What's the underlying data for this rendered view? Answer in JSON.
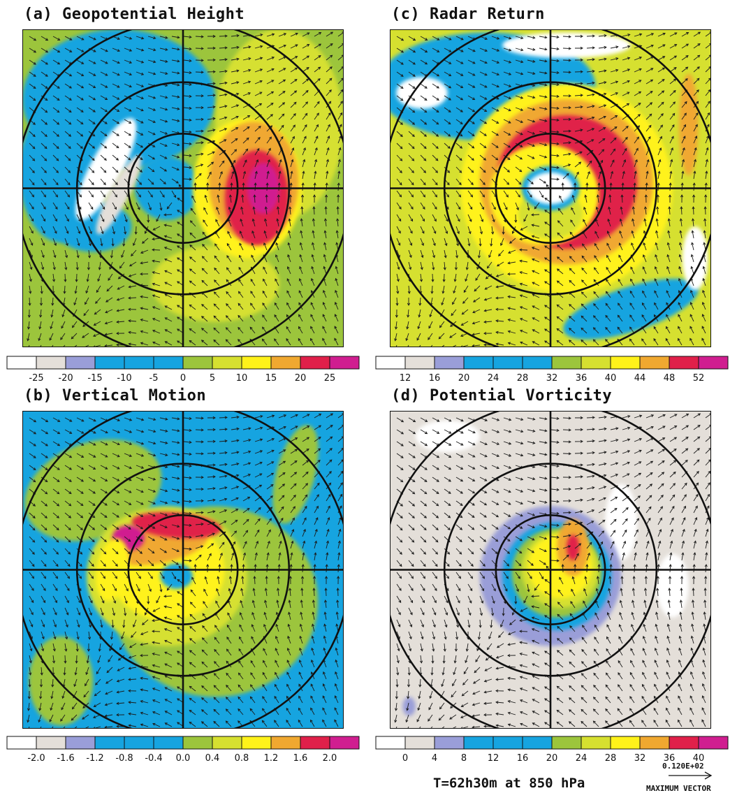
{
  "chart_data": [
    {
      "type": "heatmap",
      "id": "a",
      "title": "(a) Geopotential Height",
      "colorbar": {
        "colors": [
          "#ffffff",
          "#e4dfd9",
          "#9a9ed8",
          "#16a4e0",
          "#16a4e0",
          "#16a4e0",
          "#9cc53c",
          "#d6e030",
          "#fff21a",
          "#f0a830",
          "#e0204a",
          "#d01e90"
        ],
        "labels": [
          "-25",
          "-20",
          "-15",
          "-10",
          "-5",
          "0",
          "5",
          "10",
          "15",
          "20",
          "25"
        ]
      },
      "field": {
        "background": "#9cc53c",
        "blobs": [
          {
            "color": "#16a4e0",
            "cx": 0.3,
            "cy": 0.22,
            "rx": 0.3,
            "ry": 0.22,
            "rot": 0
          },
          {
            "color": "#16a4e0",
            "cx": 0.12,
            "cy": 0.45,
            "rx": 0.13,
            "ry": 0.22,
            "rot": 0
          },
          {
            "color": "#16a4e0",
            "cx": 0.45,
            "cy": 0.5,
            "rx": 0.1,
            "ry": 0.1,
            "rot": 0
          },
          {
            "color": "#16a4e0",
            "cx": 0.22,
            "cy": 0.62,
            "rx": 0.12,
            "ry": 0.08,
            "rot": 0
          },
          {
            "color": "#d6e030",
            "cx": 0.8,
            "cy": 0.3,
            "rx": 0.2,
            "ry": 0.3,
            "rot": 0
          },
          {
            "color": "#d6e030",
            "cx": 0.6,
            "cy": 0.8,
            "rx": 0.2,
            "ry": 0.12,
            "rot": 0
          },
          {
            "color": "#fff21a",
            "cx": 0.7,
            "cy": 0.5,
            "rx": 0.17,
            "ry": 0.22,
            "rot": 0
          },
          {
            "color": "#f0a830",
            "cx": 0.72,
            "cy": 0.48,
            "rx": 0.14,
            "ry": 0.19,
            "rot": 0
          },
          {
            "color": "#e0204a",
            "cx": 0.73,
            "cy": 0.53,
            "rx": 0.1,
            "ry": 0.15,
            "rot": 0
          },
          {
            "color": "#d01e90",
            "cx": 0.75,
            "cy": 0.5,
            "rx": 0.05,
            "ry": 0.08,
            "rot": 0
          },
          {
            "color": "#ffffff",
            "cx": 0.26,
            "cy": 0.44,
            "rx": 0.05,
            "ry": 0.18,
            "rot": 28
          },
          {
            "color": "#e4dfd9",
            "cx": 0.3,
            "cy": 0.52,
            "rx": 0.03,
            "ry": 0.14,
            "rot": 28
          }
        ]
      }
    },
    {
      "type": "heatmap",
      "id": "c",
      "title": "(c) Radar Return",
      "colorbar": {
        "colors": [
          "#ffffff",
          "#e4dfd9",
          "#9a9ed8",
          "#16a4e0",
          "#16a4e0",
          "#16a4e0",
          "#9cc53c",
          "#d6e030",
          "#fff21a",
          "#f0a830",
          "#e0204a",
          "#d01e90"
        ],
        "labels": [
          "12",
          "16",
          "20",
          "24",
          "28",
          "32",
          "36",
          "40",
          "44",
          "48",
          "52"
        ]
      },
      "field": {
        "background": "#d6e030",
        "blobs": [
          {
            "color": "#16a4e0",
            "cx": 0.3,
            "cy": 0.18,
            "rx": 0.34,
            "ry": 0.17,
            "rot": 0
          },
          {
            "color": "#16a4e0",
            "cx": 0.75,
            "cy": 0.88,
            "rx": 0.22,
            "ry": 0.07,
            "rot": -18
          },
          {
            "color": "#ffffff",
            "cx": 0.1,
            "cy": 0.2,
            "rx": 0.08,
            "ry": 0.05,
            "rot": 0
          },
          {
            "color": "#ffffff",
            "cx": 0.55,
            "cy": 0.05,
            "rx": 0.2,
            "ry": 0.04,
            "rot": 0
          },
          {
            "color": "#ffffff",
            "cx": 0.95,
            "cy": 0.72,
            "rx": 0.04,
            "ry": 0.1,
            "rot": 0
          },
          {
            "color": "#fff21a",
            "cx": 0.55,
            "cy": 0.5,
            "rx": 0.33,
            "ry": 0.33,
            "rot": 0
          },
          {
            "color": "#f0a830",
            "cx": 0.55,
            "cy": 0.48,
            "rx": 0.27,
            "ry": 0.26,
            "rot": 0
          },
          {
            "color": "#e0204a",
            "cx": 0.55,
            "cy": 0.48,
            "rx": 0.22,
            "ry": 0.21,
            "rot": 0
          },
          {
            "color": "#fff21a",
            "cx": 0.48,
            "cy": 0.52,
            "rx": 0.17,
            "ry": 0.16,
            "rot": 0
          },
          {
            "color": "#d6e030",
            "cx": 0.5,
            "cy": 0.58,
            "rx": 0.1,
            "ry": 0.08,
            "rot": 0
          },
          {
            "color": "#16a4e0",
            "cx": 0.5,
            "cy": 0.5,
            "rx": 0.09,
            "ry": 0.07,
            "rot": 0
          },
          {
            "color": "#ffffff",
            "cx": 0.5,
            "cy": 0.5,
            "rx": 0.07,
            "ry": 0.05,
            "rot": 0
          },
          {
            "color": "#f0a830",
            "cx": 0.93,
            "cy": 0.3,
            "rx": 0.03,
            "ry": 0.16,
            "rot": 0
          }
        ]
      }
    },
    {
      "type": "heatmap",
      "id": "b",
      "title": "(b) Vertical Motion",
      "colorbar": {
        "colors": [
          "#ffffff",
          "#e4dfd9",
          "#9a9ed8",
          "#16a4e0",
          "#16a4e0",
          "#16a4e0",
          "#9cc53c",
          "#d6e030",
          "#fff21a",
          "#f0a830",
          "#e0204a",
          "#d01e90"
        ],
        "labels": [
          "-2.0",
          "-1.6",
          "-1.2",
          "-0.8",
          "-0.4",
          "0.0",
          "0.4",
          "0.8",
          "1.2",
          "1.6",
          "2.0"
        ]
      },
      "field": {
        "background": "#16a4e0",
        "blobs": [
          {
            "color": "#9cc53c",
            "cx": 0.22,
            "cy": 0.25,
            "rx": 0.22,
            "ry": 0.15,
            "rot": -20
          },
          {
            "color": "#9cc53c",
            "cx": 0.6,
            "cy": 0.6,
            "rx": 0.32,
            "ry": 0.3,
            "rot": 0
          },
          {
            "color": "#9cc53c",
            "cx": 0.12,
            "cy": 0.85,
            "rx": 0.1,
            "ry": 0.14,
            "rot": 0
          },
          {
            "color": "#9cc53c",
            "cx": 0.85,
            "cy": 0.2,
            "rx": 0.06,
            "ry": 0.16,
            "rot": 15
          },
          {
            "color": "#d6e030",
            "cx": 0.45,
            "cy": 0.52,
            "rx": 0.25,
            "ry": 0.22,
            "rot": 0
          },
          {
            "color": "#fff21a",
            "cx": 0.45,
            "cy": 0.5,
            "rx": 0.18,
            "ry": 0.16,
            "rot": 0
          },
          {
            "color": "#f0a830",
            "cx": 0.42,
            "cy": 0.42,
            "rx": 0.16,
            "ry": 0.06,
            "rot": -10
          },
          {
            "color": "#e0204a",
            "cx": 0.48,
            "cy": 0.36,
            "rx": 0.14,
            "ry": 0.04,
            "rot": 5
          },
          {
            "color": "#d01e90",
            "cx": 0.33,
            "cy": 0.4,
            "rx": 0.05,
            "ry": 0.04,
            "rot": 0
          },
          {
            "color": "#16a4e0",
            "cx": 0.48,
            "cy": 0.52,
            "rx": 0.05,
            "ry": 0.04,
            "rot": 0
          },
          {
            "color": "#fff21a",
            "cx": 0.28,
            "cy": 0.5,
            "rx": 0.05,
            "ry": 0.1,
            "rot": 10
          }
        ]
      }
    },
    {
      "type": "heatmap",
      "id": "d",
      "title": "(d) Potential Vorticity",
      "colorbar": {
        "colors": [
          "#ffffff",
          "#e4dfd9",
          "#9a9ed8",
          "#16a4e0",
          "#16a4e0",
          "#16a4e0",
          "#9cc53c",
          "#d6e030",
          "#fff21a",
          "#f0a830",
          "#e0204a",
          "#d01e90"
        ],
        "labels": [
          "0",
          "4",
          "8",
          "12",
          "16",
          "20",
          "24",
          "28",
          "32",
          "36",
          "40"
        ]
      },
      "field": {
        "background": "#e4dfd9",
        "blobs": [
          {
            "color": "#ffffff",
            "cx": 0.18,
            "cy": 0.08,
            "rx": 0.1,
            "ry": 0.05,
            "rot": 0
          },
          {
            "color": "#ffffff",
            "cx": 0.72,
            "cy": 0.35,
            "rx": 0.05,
            "ry": 0.12,
            "rot": 0
          },
          {
            "color": "#ffffff",
            "cx": 0.88,
            "cy": 0.55,
            "rx": 0.05,
            "ry": 0.1,
            "rot": 0
          },
          {
            "color": "#9a9ed8",
            "cx": 0.5,
            "cy": 0.52,
            "rx": 0.22,
            "ry": 0.22,
            "rot": 0
          },
          {
            "color": "#16a4e0",
            "cx": 0.52,
            "cy": 0.52,
            "rx": 0.17,
            "ry": 0.17,
            "rot": 0
          },
          {
            "color": "#9cc53c",
            "cx": 0.52,
            "cy": 0.51,
            "rx": 0.14,
            "ry": 0.14,
            "rot": 0
          },
          {
            "color": "#d6e030",
            "cx": 0.53,
            "cy": 0.5,
            "rx": 0.12,
            "ry": 0.12,
            "rot": 0
          },
          {
            "color": "#fff21a",
            "cx": 0.53,
            "cy": 0.49,
            "rx": 0.1,
            "ry": 0.1,
            "rot": 0
          },
          {
            "color": "#f0a830",
            "cx": 0.57,
            "cy": 0.43,
            "rx": 0.05,
            "ry": 0.09,
            "rot": 0
          },
          {
            "color": "#e0204a",
            "cx": 0.57,
            "cy": 0.43,
            "rx": 0.02,
            "ry": 0.04,
            "rot": 0
          },
          {
            "color": "#9a9ed8",
            "cx": 0.06,
            "cy": 0.93,
            "rx": 0.02,
            "ry": 0.03,
            "rot": 0
          }
        ]
      }
    }
  ],
  "footer": {
    "caption": "T=62h30m at 850 hPa",
    "max_vector_value": "0.120E+02",
    "max_vector_label": "MAXIMUM VECTOR"
  }
}
